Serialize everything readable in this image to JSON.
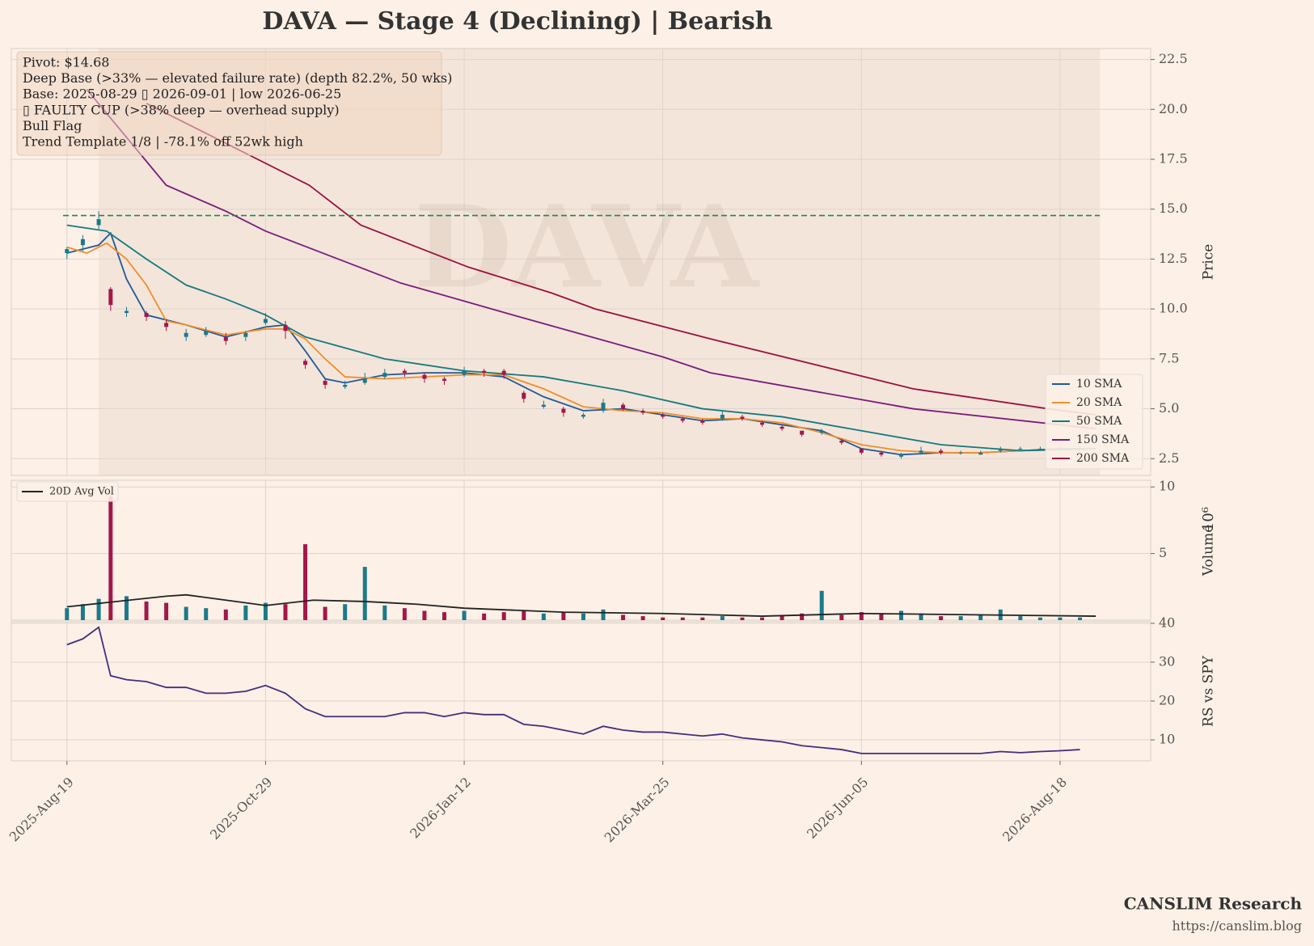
{
  "chart_data": [
    {
      "type": "candlestick",
      "title": "DAVA  —  Stage 4 (Declining)  |  Bearish",
      "watermark": "DAVA",
      "ylabel": "Price",
      "annotations": [
        "Pivot: $14.68",
        "Deep Base (>33% — elevated failure rate)  (depth 82.2%, 50 wks)",
        "Base: 2025-08-29 ▯ 2026-09-01  |  low 2026-06-25",
        "▯ FAULTY CUP (>38% deep — overhead supply)",
        "Bull Flag",
        "Trend Template 1/8  |  -78.1% off 52wk high"
      ],
      "pivot": 14.68,
      "pivot_color": "#1a8a4a",
      "base_shade": [
        8,
        260
      ],
      "up_color": "#1a7a8a",
      "down_color": "#a3174a",
      "x": [
        0,
        4,
        8,
        11,
        15,
        20,
        25,
        30,
        35,
        40,
        45,
        50,
        55,
        60,
        65,
        70,
        75,
        80,
        85,
        90,
        95,
        100,
        105,
        110,
        115,
        120,
        125,
        130,
        135,
        140,
        145,
        150,
        155,
        160,
        165,
        170,
        175,
        180,
        185,
        190,
        195,
        200,
        205,
        210,
        215,
        220,
        225,
        230,
        235,
        240,
        245,
        250,
        255
      ],
      "open": [
        12.8,
        13.2,
        14.2,
        11.0,
        9.8,
        9.8,
        9.3,
        8.6,
        8.7,
        8.6,
        8.6,
        9.3,
        9.2,
        7.4,
        6.4,
        6.1,
        6.3,
        6.6,
        6.9,
        6.7,
        6.5,
        6.7,
        6.9,
        6.9,
        5.8,
        5.1,
        5.0,
        4.6,
        4.9,
        5.2,
        4.9,
        4.7,
        4.5,
        4.4,
        4.5,
        4.6,
        4.3,
        4.1,
        3.9,
        3.8,
        3.4,
        3.0,
        2.8,
        2.6,
        2.8,
        2.9,
        2.8,
        2.7,
        2.9,
        3.0,
        2.9,
        3.0,
        3.0
      ],
      "high": [
        13.1,
        13.7,
        14.9,
        11.1,
        10.1,
        9.9,
        9.5,
        9.0,
        9.1,
        8.8,
        8.9,
        9.8,
        9.4,
        7.5,
        6.5,
        6.4,
        6.8,
        7.0,
        7.0,
        6.8,
        6.6,
        7.1,
        7.0,
        7.0,
        5.9,
        5.4,
        5.1,
        4.8,
        5.5,
        5.3,
        5.0,
        4.8,
        4.6,
        4.5,
        4.9,
        4.7,
        4.4,
        4.2,
        3.9,
        4.0,
        3.5,
        3.0,
        2.9,
        2.8,
        3.1,
        3.0,
        2.9,
        2.9,
        3.1,
        3.1,
        3.1,
        3.1,
        3.1
      ],
      "low": [
        12.5,
        12.9,
        14.0,
        9.9,
        9.6,
        9.4,
        8.9,
        8.4,
        8.6,
        8.2,
        8.4,
        9.2,
        8.5,
        7.0,
        6.0,
        6.0,
        6.2,
        6.5,
        6.6,
        6.3,
        6.2,
        6.6,
        6.6,
        6.5,
        5.3,
        5.0,
        4.6,
        4.5,
        4.8,
        4.9,
        4.7,
        4.5,
        4.3,
        4.2,
        4.4,
        4.4,
        4.1,
        3.9,
        3.6,
        3.7,
        3.2,
        2.7,
        2.6,
        2.5,
        2.7,
        2.7,
        2.7,
        2.7,
        2.8,
        2.9,
        2.9,
        2.9,
        2.9
      ],
      "close": [
        13.0,
        13.5,
        14.5,
        10.2,
        9.9,
        9.6,
        9.1,
        8.8,
        8.9,
        8.4,
        8.8,
        9.5,
        8.9,
        7.2,
        6.2,
        6.2,
        6.5,
        6.8,
        6.8,
        6.5,
        6.4,
        6.9,
        6.8,
        6.7,
        5.5,
        5.2,
        4.8,
        4.7,
        5.3,
        5.0,
        4.8,
        4.6,
        4.4,
        4.3,
        4.7,
        4.5,
        4.2,
        4.0,
        3.7,
        3.9,
        3.3,
        2.8,
        2.7,
        2.7,
        2.9,
        2.8,
        2.8,
        2.8,
        3.0,
        3.0,
        3.0,
        3.0,
        3.0
      ],
      "series": [
        {
          "name": "10 SMA",
          "color": "#1f5a99",
          "x": [
            0,
            8,
            11,
            15,
            20,
            30,
            40,
            50,
            55,
            60,
            65,
            70,
            80,
            90,
            100,
            110,
            120,
            130,
            140,
            150,
            160,
            170,
            180,
            190,
            200,
            210,
            220,
            230,
            240,
            250,
            259
          ],
          "values": [
            12.8,
            13.2,
            13.8,
            11.5,
            9.7,
            9.2,
            8.6,
            9.1,
            9.2,
            7.9,
            6.5,
            6.3,
            6.7,
            6.8,
            6.8,
            6.6,
            5.6,
            4.9,
            5.0,
            4.7,
            4.4,
            4.5,
            4.2,
            3.9,
            3.0,
            2.7,
            2.8,
            2.8,
            2.9,
            3.0,
            3.0
          ]
        },
        {
          "name": "20 SMA",
          "color": "#f28e2b",
          "x": [
            0,
            5,
            10,
            15,
            20,
            25,
            30,
            40,
            50,
            55,
            60,
            65,
            70,
            80,
            90,
            100,
            110,
            120,
            130,
            140,
            150,
            160,
            170,
            180,
            190,
            200,
            210,
            220,
            230,
            240,
            259
          ],
          "values": [
            13.1,
            12.8,
            13.3,
            12.5,
            11.2,
            9.4,
            9.2,
            8.7,
            9.0,
            9.0,
            8.5,
            7.5,
            6.6,
            6.5,
            6.6,
            6.7,
            6.7,
            6.0,
            5.1,
            4.9,
            4.8,
            4.5,
            4.5,
            4.3,
            3.8,
            3.2,
            2.9,
            2.8,
            2.8,
            2.9,
            3.0
          ]
        },
        {
          "name": "50 SMA",
          "color": "#137a7f",
          "x": [
            0,
            10,
            20,
            30,
            40,
            50,
            60,
            80,
            100,
            120,
            140,
            160,
            180,
            200,
            220,
            240,
            259
          ],
          "values": [
            14.2,
            13.9,
            12.5,
            11.2,
            10.5,
            9.7,
            8.6,
            7.5,
            6.9,
            6.6,
            5.9,
            5.0,
            4.6,
            3.9,
            3.2,
            2.9,
            3.0
          ]
        },
        {
          "name": "150 SMA",
          "color": "#7b1c7b",
          "x": [
            5,
            25,
            40,
            50,
            84,
            114,
            150,
            162,
            213,
            259
          ],
          "values": [
            21.0,
            16.2,
            14.9,
            13.9,
            11.3,
            9.6,
            7.6,
            6.8,
            5.0,
            4.0
          ]
        },
        {
          "name": "200 SMA",
          "color": "#9b1040",
          "x": [
            20,
            40,
            61,
            74,
            101,
            122,
            133,
            162,
            213,
            247,
            259
          ],
          "values": [
            20.3,
            18.3,
            16.2,
            14.2,
            12.1,
            10.8,
            10.0,
            8.5,
            6.0,
            5.0,
            4.7
          ]
        }
      ],
      "legend": "lower right",
      "xlim": [
        -14,
        272.8
      ],
      "ylim": [
        1.66,
        23.05
      ],
      "yticks": [
        2.5,
        {
          "value": 5,
          "label": "5.0"
        },
        7.5,
        {
          "value": 10,
          "label": "10.0"
        },
        12.5,
        {
          "value": 15,
          "label": "15.0"
        },
        17.5,
        {
          "value": 20,
          "label": "20.0"
        },
        22.5
      ],
      "grid": true
    },
    {
      "type": "bar",
      "ylabel": "Volume",
      "ylabel_exponent": "10⁶",
      "x": [
        0,
        4,
        8,
        11,
        15,
        20,
        25,
        30,
        35,
        40,
        45,
        50,
        55,
        60,
        65,
        70,
        75,
        80,
        85,
        90,
        95,
        100,
        105,
        110,
        115,
        120,
        125,
        130,
        135,
        140,
        145,
        150,
        155,
        160,
        165,
        170,
        175,
        180,
        185,
        190,
        195,
        200,
        205,
        210,
        215,
        220,
        225,
        230,
        235,
        240,
        245,
        250,
        255
      ],
      "values": [
        0.9,
        1.2,
        1.6,
        9.3,
        1.8,
        1.4,
        1.3,
        1.0,
        0.9,
        0.8,
        1.1,
        1.3,
        1.2,
        5.7,
        1.0,
        1.2,
        4.0,
        1.1,
        0.9,
        0.7,
        0.6,
        0.7,
        0.5,
        0.6,
        0.7,
        0.5,
        0.6,
        0.5,
        0.8,
        0.4,
        0.3,
        0.2,
        0.2,
        0.2,
        0.3,
        0.2,
        0.2,
        0.3,
        0.5,
        2.2,
        0.4,
        0.6,
        0.5,
        0.7,
        0.5,
        0.3,
        0.3,
        0.4,
        0.8,
        0.3,
        0.2,
        0.2,
        0.2
      ],
      "series": [
        {
          "name": "20D Avg Vol",
          "color": "#222222",
          "x": [
            0,
            25,
            30,
            40,
            50,
            62,
            75,
            88,
            100,
            125,
            150,
            175,
            200,
            259
          ],
          "values": [
            1.0,
            1.8,
            1.9,
            1.5,
            1.1,
            1.5,
            1.4,
            1.2,
            0.9,
            0.6,
            0.5,
            0.3,
            0.5,
            0.3
          ]
        }
      ],
      "legend": "upper left",
      "xlim": [
        -14,
        272.8
      ],
      "ylim": [
        0,
        10.5
      ],
      "yticks": [
        5,
        10
      ],
      "grid": true
    },
    {
      "type": "line",
      "ylabel": "RS vs SPY",
      "color": "#4b2a7b",
      "x": [
        0,
        4,
        8,
        11,
        15,
        20,
        25,
        30,
        35,
        40,
        45,
        50,
        55,
        60,
        65,
        70,
        75,
        80,
        85,
        90,
        95,
        100,
        105,
        110,
        115,
        120,
        125,
        130,
        135,
        140,
        145,
        150,
        155,
        160,
        165,
        170,
        175,
        180,
        185,
        190,
        195,
        200,
        205,
        210,
        215,
        220,
        225,
        230,
        235,
        240,
        245,
        250,
        255
      ],
      "values": [
        34.5,
        36,
        39,
        26.5,
        25.5,
        25,
        23.5,
        23.5,
        22,
        22,
        22.5,
        24,
        22,
        18,
        16,
        16,
        16,
        16,
        17,
        17,
        16,
        17,
        16.5,
        16.5,
        14,
        13.5,
        12.5,
        11.5,
        13.5,
        12.5,
        12,
        12,
        11.5,
        11,
        11.5,
        10.5,
        10,
        9.5,
        8.5,
        8,
        7.5,
        6.5,
        6.5,
        6.5,
        6.5,
        6.5,
        6.5,
        6.5,
        7,
        6.7,
        7,
        7.2,
        7.5
      ],
      "xlim": [
        -14,
        272.8
      ],
      "ylim": [
        4.6,
        40.4
      ],
      "yticks": [
        10,
        20,
        30,
        40
      ],
      "xticks": [
        {
          "value": 0,
          "label": "2025-Aug-19"
        },
        {
          "value": 50,
          "label": "2025-Oct-29"
        },
        {
          "value": 100,
          "label": "2026-Jan-12"
        },
        {
          "value": 150,
          "label": "2026-Mar-25"
        },
        {
          "value": 200,
          "label": "2026-Jun-05"
        },
        {
          "value": 250,
          "label": "2026-Aug-18"
        }
      ],
      "grid": true
    }
  ],
  "footer": {
    "brand": "CANSLIM Research",
    "url": "https://canslim.blog"
  }
}
